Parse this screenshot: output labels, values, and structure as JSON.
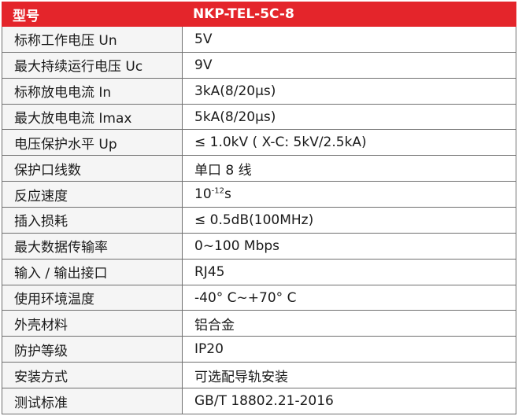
{
  "header": {
    "label": "型号",
    "value": "NKP-TEL-5C-8"
  },
  "rows": [
    {
      "label": "标称工作电压 Un",
      "value": "5V"
    },
    {
      "label": "最大持续运行电压 Uc",
      "value": "9V"
    },
    {
      "label": "标称放电电流 In",
      "value": "3kA(8/20μs)"
    },
    {
      "label": "最大放电电流 Imax",
      "value": "5kA(8/20μs)"
    },
    {
      "label": "电压保护水平 Up",
      "value": " ≤ 1.0kV ( X-C: 5kV/2.5kA)"
    },
    {
      "label": "保护口线数",
      "value": "单口 8 线"
    },
    {
      "label": "反应速度",
      "value_base": "10",
      "value_exp": "-12",
      "value_unit": "s"
    },
    {
      "label": "插入损耗",
      "value": "≤ 0.5dB(100MHz)"
    },
    {
      "label": "最大数据传输率",
      "value": "0~100 Mbps"
    },
    {
      "label": "输入 / 输出接口",
      "value": "RJ45"
    },
    {
      "label": "使用环境温度",
      "value": "-40° C~+70° C"
    },
    {
      "label": "外壳材料",
      "value": "铝合金"
    },
    {
      "label": "防护等级",
      "value": "IP20"
    },
    {
      "label": "安装方式",
      "value": "可选配导轨安装"
    },
    {
      "label": "测试标准",
      "value": "GB/T 18802.21-2016"
    }
  ]
}
